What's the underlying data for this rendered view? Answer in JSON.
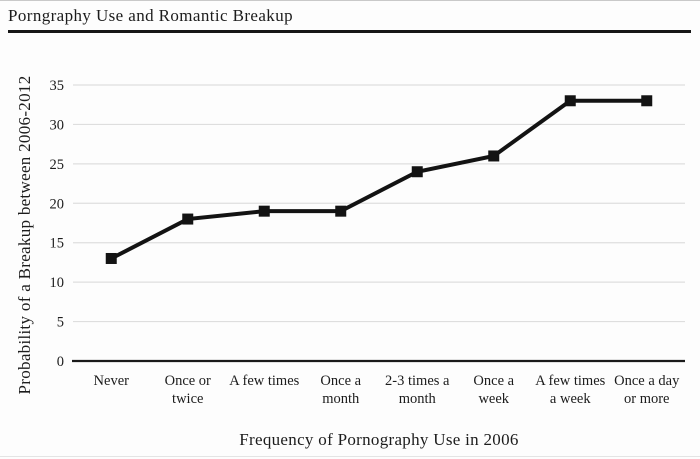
{
  "chart_data": {
    "type": "line",
    "title": "Porngraphy Use and Romantic Breakup",
    "xlabel": "Frequency of Pornography Use in 2006",
    "ylabel": "Probability of a Breakup between 2006-2012",
    "categories": [
      "Never",
      "Once or twice",
      "A few times",
      "Once a month",
      "2-3 times a month",
      "Once a week",
      "A few times a week",
      "Once a day or more"
    ],
    "category_lines": [
      [
        "Never"
      ],
      [
        "Once or",
        "twice"
      ],
      [
        "A few times"
      ],
      [
        "Once a",
        "month"
      ],
      [
        "2-3 times a",
        "month"
      ],
      [
        "Once a",
        "week"
      ],
      [
        "A few times",
        "a week"
      ],
      [
        "Once a day",
        "or more"
      ]
    ],
    "values": [
      13,
      18,
      19,
      19,
      24,
      26,
      33,
      33
    ],
    "yticks": [
      0,
      5,
      10,
      15,
      20,
      25,
      30,
      35
    ],
    "ylim": [
      0,
      35
    ],
    "grid": true,
    "legend_position": "none",
    "marker": "square",
    "line_color": "#131313",
    "grid_color": "#dedede",
    "axis_color": "#1a1a1a",
    "text_color": "#1c1c1c"
  }
}
